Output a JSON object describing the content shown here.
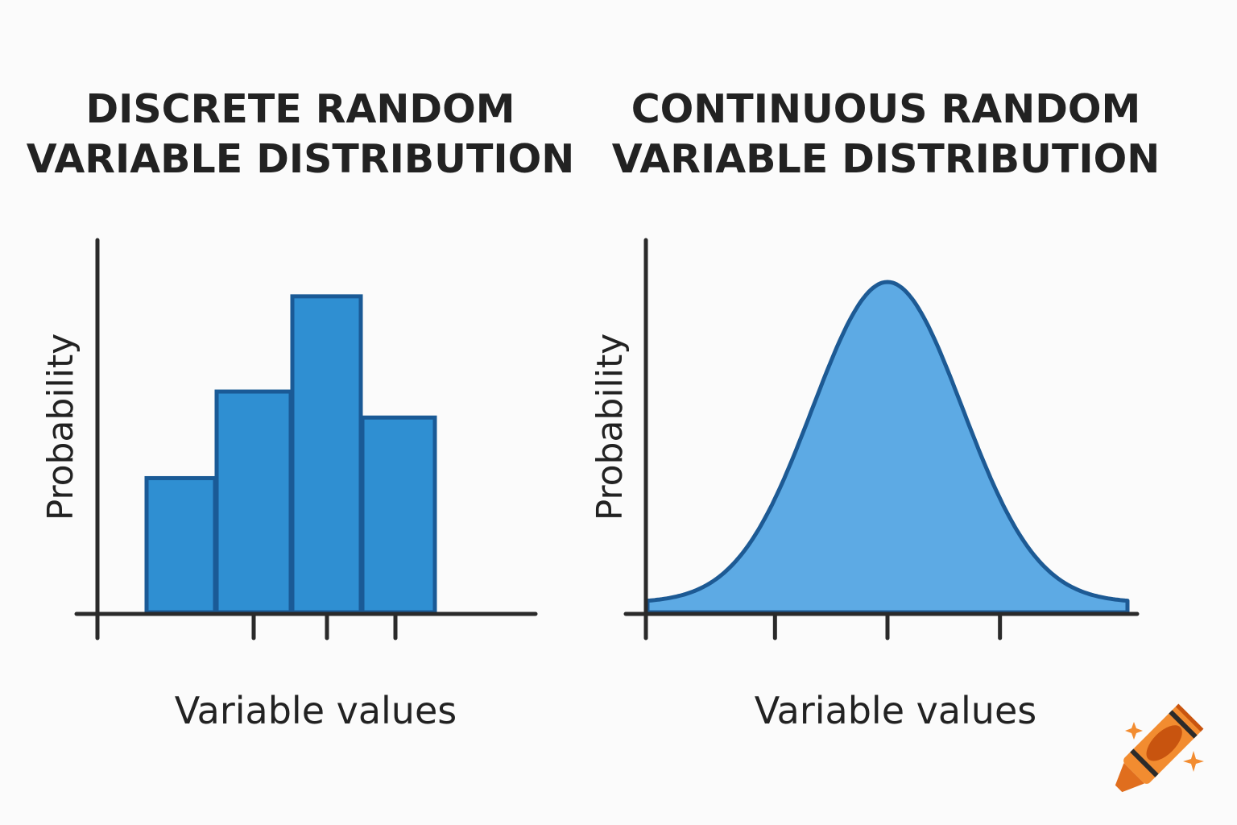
{
  "chart_data": [
    {
      "type": "bar",
      "title": "DISCRETE RANDOM VARIABLE DISTRIBUTION",
      "title_lines": [
        "DISCRETE RANDOM",
        "VARIABLE DISTRIBUTION"
      ],
      "xlabel": "Variable values",
      "ylabel": "Probability",
      "values": [
        0.155,
        0.255,
        0.365,
        0.225
      ],
      "ylim": [
        0,
        0.43
      ],
      "grid": false,
      "bar_fill": "#2F8FD2",
      "bar_stroke": "#1A5A96"
    },
    {
      "type": "area",
      "title": "CONTINUOUS RANDOM VARIABLE DISTRIBUTION",
      "title_lines": [
        "CONTINUOUS RANDOM",
        "VARIABLE DISTRIBUTION"
      ],
      "xlabel": "Variable values",
      "ylabel": "Probability",
      "distribution": "normal",
      "mean": 0,
      "sd": 1,
      "xlim": [
        -3.2,
        3.2
      ],
      "ticks": [
        -1.5,
        0,
        1.5
      ],
      "grid": false,
      "fill": "#5DAAE4",
      "stroke": "#1D5A94"
    }
  ],
  "logo": {
    "icon": "crayon-icon",
    "colors": [
      "#F28C30",
      "#C8540F",
      "#2B2B2B"
    ]
  }
}
